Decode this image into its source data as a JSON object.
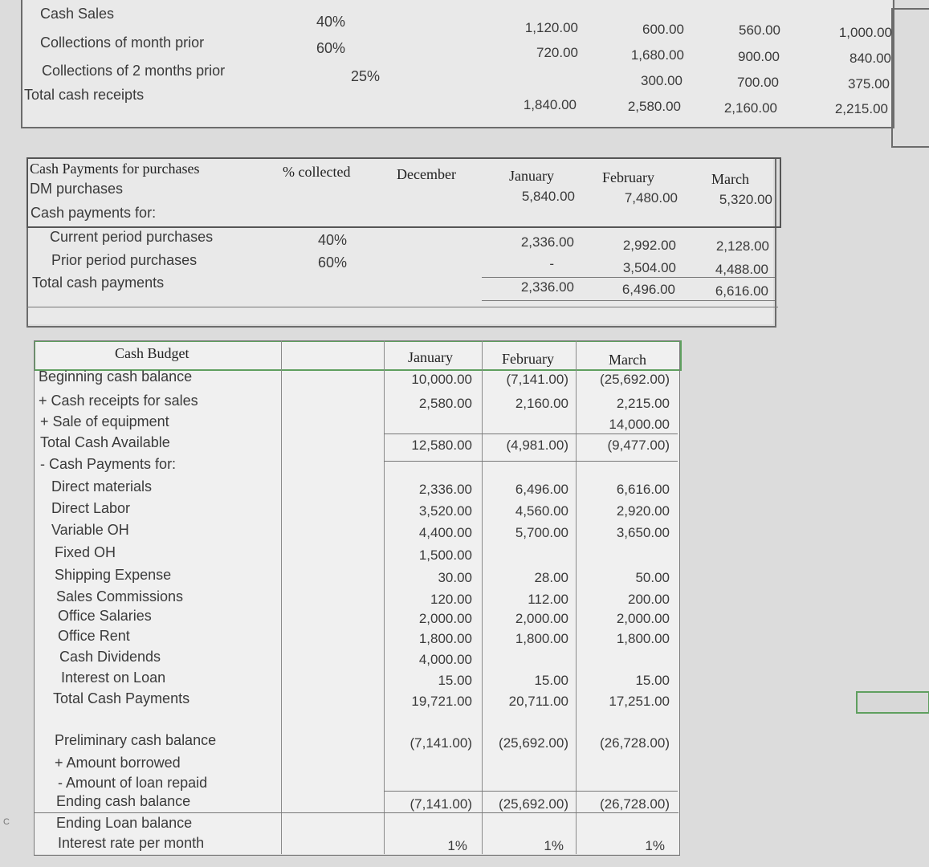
{
  "receipts": {
    "pct": [
      "40%",
      "60%",
      "25%"
    ],
    "labels": [
      "Cash Sales",
      "Collections of month prior",
      "Collections of 2 months prior",
      "Total cash receipts"
    ],
    "cols": [
      [
        "1,120.00",
        "720.00",
        "",
        "1,840.00"
      ],
      [
        "600.00",
        "1,680.00",
        "300.00",
        "2,580.00"
      ],
      [
        "560.00",
        "900.00",
        "700.00",
        "2,160.00"
      ],
      [
        "1,000.00",
        "840.00",
        "375.00",
        "2,215.00"
      ]
    ]
  },
  "payments": {
    "title": "Cash Payments for purchases",
    "h_collected": "% collected",
    "h_december": "December",
    "months": [
      "January",
      "February",
      "March"
    ],
    "labels": [
      "DM purchases",
      "Cash payments for:",
      "Current period purchases",
      "Prior period purchases",
      "Total cash payments"
    ],
    "pct": [
      "40%",
      "60%"
    ],
    "dm": [
      "5,840.00",
      "7,480.00",
      "5,320.00"
    ],
    "current": [
      "2,336.00",
      "2,992.00",
      "2,128.00"
    ],
    "prior": [
      "-",
      "3,504.00",
      "4,488.00"
    ],
    "total": [
      "2,336.00",
      "6,496.00",
      "6,616.00"
    ]
  },
  "budget": {
    "title": "Cash Budget",
    "months": [
      "January",
      "February",
      "March"
    ],
    "labels": [
      "Beginning cash balance",
      "+ Cash receipts for sales",
      "+ Sale of equipment",
      "Total Cash Available",
      "- Cash Payments for:",
      "Direct materials",
      "Direct Labor",
      "Variable OH",
      "Fixed OH",
      "Shipping Expense",
      "Sales Commissions",
      "Office Salaries",
      "Office Rent",
      "Cash Dividends",
      "Interest on Loan",
      "Total Cash Payments",
      "Preliminary cash balance",
      "+ Amount borrowed",
      "- Amount of loan repaid",
      "Ending cash balance",
      "Ending Loan balance",
      "Interest rate per month"
    ],
    "cols": [
      [
        "10,000.00",
        "2,580.00",
        "",
        "12,580.00",
        "",
        "2,336.00",
        "3,520.00",
        "4,400.00",
        "1,500.00",
        "30.00",
        "120.00",
        "2,000.00",
        "1,800.00",
        "4,000.00",
        "15.00",
        "19,721.00",
        "(7,141.00)",
        "",
        "",
        "(7,141.00)",
        "",
        "1%"
      ],
      [
        "(7,141.00)",
        "2,160.00",
        "",
        "(4,981.00)",
        "",
        "6,496.00",
        "4,560.00",
        "5,700.00",
        "",
        "28.00",
        "112.00",
        "2,000.00",
        "1,800.00",
        "",
        "15.00",
        "20,711.00",
        "(25,692.00)",
        "",
        "",
        "(25,692.00)",
        "",
        "1%"
      ],
      [
        "(25,692.00)",
        "2,215.00",
        "14,000.00",
        "(9,477.00)",
        "",
        "6,616.00",
        "2,920.00",
        "3,650.00",
        "",
        "50.00",
        "200.00",
        "2,000.00",
        "1,800.00",
        "",
        "15.00",
        "17,251.00",
        "(26,728.00)",
        "",
        "",
        "(26,728.00)",
        "",
        "1%"
      ]
    ]
  },
  "edge_char": "C"
}
